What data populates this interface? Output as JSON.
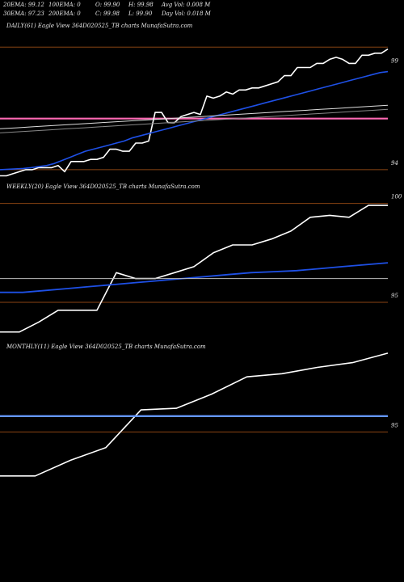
{
  "header": {
    "row1": [
      "20EMA: 99.12",
      "100EMA: 0",
      "O: 99.90",
      "H: 99.98",
      "Avg Vol: 0.008 M"
    ],
    "row2": [
      "30EMA: 97.23",
      "200EMA: 0",
      "C: 99.98",
      "L: 99.90",
      "Day Vol: 0.018  M"
    ]
  },
  "chart_data": [
    {
      "type": "line",
      "title": "DAILY(61) Eagle  View  364D020525_TB charts MunafaSutra.com",
      "yticks": [
        {
          "value": 99,
          "label": "99"
        },
        {
          "value": 94,
          "label": "94"
        }
      ],
      "ylim": [
        93.6,
        100.8
      ],
      "hlines": [
        {
          "value": 100,
          "color": "#8b4513"
        },
        {
          "value": 94,
          "color": "#8b4513"
        },
        {
          "value": 96.5,
          "color": "#ff69b4"
        }
      ],
      "series": [
        {
          "color": "#ffffff",
          "values": [
            93.7,
            93.7,
            93.8,
            93.9,
            94.0,
            94.0,
            94.1,
            94.1,
            94.1,
            94.2,
            93.9,
            94.4,
            94.4,
            94.4,
            94.5,
            94.5,
            94.6,
            95.0,
            95.0,
            94.9,
            94.9,
            95.3,
            95.3,
            95.4,
            96.8,
            96.8,
            96.3,
            96.3,
            96.6,
            96.7,
            96.8,
            96.7,
            97.6,
            97.5,
            97.6,
            97.8,
            97.7,
            97.9,
            97.9,
            98.0,
            98.0,
            98.1,
            98.2,
            98.3,
            98.6,
            98.6,
            99.0,
            99.0,
            99.0,
            99.2,
            99.2,
            99.4,
            99.5,
            99.4,
            99.2,
            99.2,
            99.6,
            99.6,
            99.7,
            99.7,
            99.9
          ]
        },
        {
          "color": "#1e50e6",
          "values": [
            94.0,
            94.02,
            94.04,
            94.06,
            94.1,
            94.15,
            94.2,
            94.3,
            94.45,
            94.6,
            94.75,
            94.9,
            95.0,
            95.1,
            95.2,
            95.3,
            95.4,
            95.55,
            95.65,
            95.75,
            95.85,
            95.95,
            96.05,
            96.15,
            96.25,
            96.35,
            96.45,
            96.55,
            96.65,
            96.75,
            96.85,
            96.95,
            97.05,
            97.15,
            97.25,
            97.35,
            97.45,
            97.55,
            97.65,
            97.75,
            97.85,
            97.95,
            98.05,
            98.15,
            98.25,
            98.35,
            98.45,
            98.55,
            98.65,
            98.75,
            98.8
          ]
        },
        {
          "color": "#dddddd",
          "values": [
            96.0,
            96.05,
            96.1,
            96.15,
            96.2,
            96.25,
            96.3,
            96.35,
            96.4,
            96.45,
            96.5,
            96.55,
            96.6,
            96.65,
            96.7,
            96.75,
            96.8,
            96.85,
            96.9,
            96.95,
            97.0,
            97.05,
            97.1,
            97.15
          ]
        },
        {
          "color": "#888888",
          "values": [
            95.8,
            95.85,
            95.9,
            95.95,
            96.0,
            96.05,
            96.1,
            96.15,
            96.2,
            96.25,
            96.3,
            96.35,
            96.4,
            96.45,
            96.5,
            96.55,
            96.6,
            96.65,
            96.7,
            96.75,
            96.8,
            96.85,
            96.9,
            96.95
          ]
        }
      ]
    },
    {
      "type": "line",
      "title": "WEEKLY(20) Eagle  View  364D020525_TB charts MunafaSutra.com",
      "yticks": [
        {
          "value": 100,
          "label": "100"
        },
        {
          "value": 95,
          "label": "95"
        }
      ],
      "ylim": [
        93.2,
        100.6
      ],
      "hlines": [
        {
          "value": 100,
          "color": "#8b4513"
        },
        {
          "value": 95,
          "color": "#8b4513"
        }
      ],
      "series": [
        {
          "color": "#ffffff",
          "values": [
            93.5,
            93.5,
            94.0,
            94.6,
            94.6,
            94.6,
            96.5,
            96.2,
            96.2,
            96.5,
            96.8,
            97.5,
            97.9,
            97.9,
            98.2,
            98.6,
            99.3,
            99.4,
            99.3,
            99.9,
            99.9
          ]
        },
        {
          "color": "#1e50e6",
          "values": [
            95.5,
            95.5,
            95.6,
            95.7,
            95.8,
            95.9,
            96.0,
            96.1,
            96.2,
            96.3,
            96.4,
            96.5,
            96.55,
            96.6,
            96.7,
            96.8,
            96.9,
            97.0
          ]
        },
        {
          "color": "#bbbbbb",
          "values": [
            96.2,
            96.2
          ]
        }
      ]
    },
    {
      "type": "line",
      "title": "MONTHLY(11) Eagle  View  364D020525_TB charts MunafaSutra.com",
      "yticks": [
        {
          "value": 95,
          "label": "95"
        }
      ],
      "ylim": [
        90.6,
        100.1
      ],
      "hlines": [
        {
          "value": 95,
          "color": "#8b4513"
        }
      ],
      "series": [
        {
          "color": "#ffffff",
          "values": [
            92.2,
            92.2,
            93.2,
            94.0,
            96.4,
            96.5,
            97.4,
            98.5,
            98.7,
            99.1,
            99.4,
            100.0
          ]
        },
        {
          "color": "#6496ff",
          "values": [
            96.0,
            96.0
          ]
        }
      ]
    }
  ]
}
